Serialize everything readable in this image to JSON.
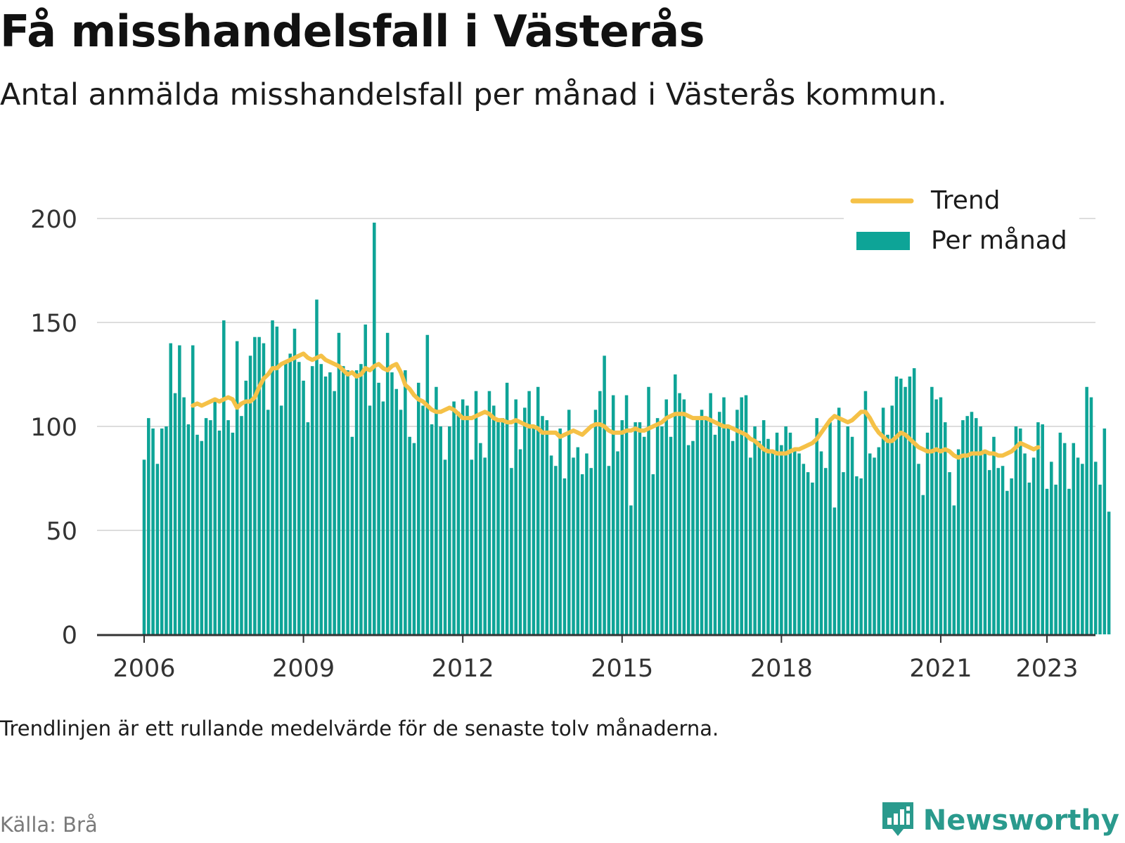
{
  "title": "Få misshandelsfall i Västerås",
  "subtitle": "Antal anmälda misshandelsfall per månad i Västerås kommun.",
  "note": "Trendlinjen är ett rullande medelvärde för de senaste tolv månaderna.",
  "source": "Källa: Brå",
  "brand": {
    "name": "Newsworthy",
    "icon": "newsworthy-logo-icon"
  },
  "colors": {
    "bars": "#0ea497",
    "trend": "#f5c147",
    "grid": "#dddddd",
    "axis": "#333333",
    "brand": "#2a9a8d"
  },
  "chart_data": {
    "type": "bar",
    "start": "2006-01",
    "yticks": [
      0,
      50,
      100,
      150,
      200
    ],
    "ylim": [
      0,
      210
    ],
    "xticks": [
      "2006",
      "2009",
      "2012",
      "2015",
      "2018",
      "2021",
      "2023"
    ],
    "grid": true,
    "legend_position": "top-right",
    "series": [
      {
        "name": "Per månad",
        "type": "bar",
        "values": [
          84,
          104,
          99,
          82,
          99,
          100,
          140,
          116,
          139,
          114,
          101,
          139,
          96,
          93,
          104,
          103,
          113,
          98,
          151,
          103,
          97,
          141,
          105,
          122,
          134,
          143,
          143,
          140,
          108,
          151,
          148,
          110,
          131,
          135,
          147,
          131,
          122,
          102,
          129,
          161,
          130,
          124,
          126,
          117,
          145,
          129,
          127,
          95,
          127,
          130,
          149,
          110,
          198,
          121,
          112,
          145,
          126,
          118,
          108,
          127,
          95,
          92,
          121,
          110,
          144,
          101,
          119,
          100,
          84,
          100,
          112,
          107,
          113,
          110,
          84,
          117,
          92,
          85,
          117,
          110,
          103,
          104,
          121,
          80,
          113,
          89,
          109,
          117,
          99,
          119,
          105,
          103,
          86,
          81,
          99,
          75,
          108,
          85,
          90,
          77,
          87,
          80,
          108,
          117,
          134,
          81,
          115,
          88,
          103,
          115,
          62,
          102,
          102,
          95,
          119,
          77,
          104,
          100,
          113,
          95,
          125,
          116,
          113,
          91,
          93,
          104,
          108,
          104,
          116,
          96,
          107,
          114,
          100,
          93,
          108,
          114,
          115,
          85,
          100,
          93,
          103,
          94,
          88,
          97,
          91,
          100,
          97,
          89,
          87,
          82,
          78,
          73,
          104,
          88,
          80,
          102,
          61,
          109,
          78,
          100,
          95,
          76,
          75,
          117,
          87,
          85,
          90,
          109,
          96,
          110,
          124,
          123,
          119,
          124,
          128,
          82,
          67,
          97,
          119,
          113,
          114,
          102,
          78,
          62,
          89,
          103,
          105,
          107,
          104,
          100,
          88,
          79,
          95,
          80,
          81,
          69,
          75,
          100,
          99,
          87,
          73,
          85,
          102,
          101,
          70,
          83,
          72,
          97,
          92,
          70,
          92,
          85,
          82,
          119,
          114,
          83,
          72,
          99,
          59
        ]
      },
      {
        "name": "Trend",
        "type": "line",
        "start": "2006-12",
        "values": [
          110,
          111,
          110,
          111,
          112,
          113,
          112,
          113,
          114,
          113,
          109,
          111,
          112,
          112,
          114,
          119,
          123,
          125,
          128,
          128,
          130,
          131,
          132,
          133,
          134,
          135,
          133,
          132,
          133,
          134,
          132,
          131,
          130,
          129,
          127,
          125,
          126,
          124,
          125,
          128,
          127,
          129,
          130,
          128,
          127,
          129,
          130,
          126,
          120,
          118,
          115,
          113,
          112,
          110,
          108,
          107,
          107,
          108,
          109,
          108,
          106,
          104,
          104,
          104,
          105,
          106,
          107,
          106,
          104,
          103,
          103,
          102,
          102,
          103,
          102,
          101,
          100,
          100,
          99,
          97,
          97,
          97,
          97,
          95,
          96,
          97,
          98,
          97,
          96,
          98,
          100,
          101,
          101,
          100,
          98,
          97,
          97,
          97,
          98,
          98,
          99,
          98,
          98,
          99,
          100,
          101,
          102,
          104,
          105,
          106,
          106,
          106,
          105,
          104,
          104,
          104,
          104,
          103,
          102,
          101,
          100,
          100,
          99,
          98,
          97,
          96,
          94,
          93,
          91,
          89,
          88,
          88,
          87,
          87,
          87,
          88,
          89,
          89,
          90,
          91,
          92,
          94,
          97,
          100,
          103,
          105,
          104,
          103,
          102,
          103,
          105,
          107,
          107,
          104,
          100,
          97,
          95,
          93,
          93,
          95,
          97,
          96,
          94,
          92,
          90,
          89,
          88,
          88,
          89,
          88,
          89,
          88,
          86,
          85,
          86,
          86,
          87,
          87,
          87,
          88,
          87,
          87,
          86,
          86,
          87,
          88,
          90,
          92,
          91,
          90,
          89,
          90
        ]
      }
    ]
  }
}
